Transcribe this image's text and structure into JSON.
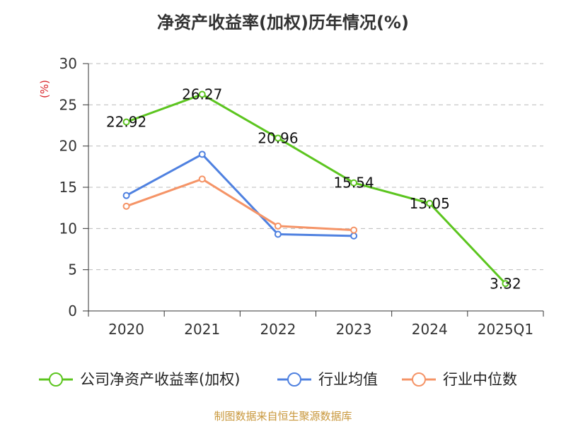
{
  "title": "净资产收益率(加权)历年情况(%)",
  "source": "制图数据来自恒生聚源数据库",
  "colors": {
    "company": "#5cc51f",
    "industry_avg": "#4f81e0",
    "industry_median": "#f59467",
    "unit": "#d9262c",
    "grid": "#bbbbbb",
    "axis": "#333333",
    "source": "#c8973b"
  },
  "chart_data": {
    "type": "line",
    "title": "净资产收益率(加权)历年情况(%)",
    "unit_label": "(%)",
    "categories": [
      "2020",
      "2021",
      "2022",
      "2023",
      "2024",
      "2025Q1"
    ],
    "ylim": [
      0,
      30
    ],
    "yticks": [
      0,
      5,
      10,
      15,
      20,
      25,
      30
    ],
    "grid": true,
    "legend_position": "bottom",
    "series": [
      {
        "name": "公司净资产收益率(加权)",
        "color": "#5cc51f",
        "values": [
          22.92,
          26.27,
          20.96,
          15.54,
          13.05,
          3.32
        ],
        "labels": true
      },
      {
        "name": "行业均值",
        "color": "#4f81e0",
        "values": [
          14.0,
          19.0,
          9.3,
          9.1,
          null,
          null
        ],
        "labels": false
      },
      {
        "name": "行业中位数",
        "color": "#f59467",
        "values": [
          12.7,
          16.0,
          10.3,
          9.8,
          null,
          null
        ],
        "labels": false
      }
    ]
  }
}
